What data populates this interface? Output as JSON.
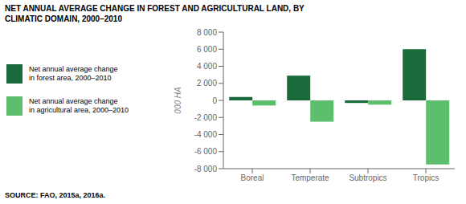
{
  "chart_data": {
    "type": "bar",
    "title": "NET ANNUAL AVERAGE CHANGE IN FOREST AND AGRICULTURAL LAND, BY\nCLIMATIC DOMAIN, 2000–2010",
    "categories": [
      "Boreal",
      "Temperate",
      "Subtropics",
      "Tropics"
    ],
    "series": [
      {
        "name": "Net annual average change\nin forest area, 2000–2010",
        "color": "#1a6b3c",
        "values": [
          400,
          2900,
          -300,
          6000
        ]
      },
      {
        "name": "Net annual average change\nin agricultural area, 2000–2010",
        "color": "#5dbe6e",
        "values": [
          -600,
          -2500,
          -500,
          -7500
        ]
      }
    ],
    "ylabel": "000 HA",
    "ylim": [
      -8000,
      8000
    ],
    "yticks": [
      {
        "value": -8000,
        "label": "-8 000"
      },
      {
        "value": -6000,
        "label": "-6 000"
      },
      {
        "value": -4000,
        "label": "-4 000"
      },
      {
        "value": -2000,
        "label": "-2 000"
      },
      0,
      {
        "value": 2000,
        "label": "2 000"
      },
      {
        "value": 4000,
        "label": "4 000"
      },
      {
        "value": 6000,
        "label": "6 000"
      },
      {
        "value": 8000,
        "label": "8 000"
      }
    ],
    "grid": false,
    "annotations": [
      "SOURCE: FAO, 2015a, 2016a."
    ]
  }
}
